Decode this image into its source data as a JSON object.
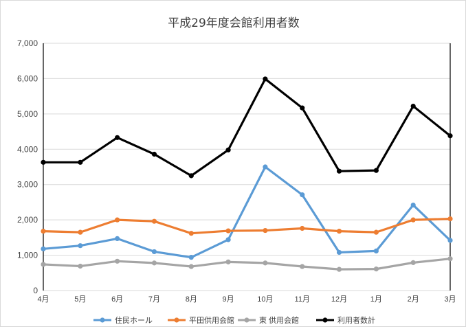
{
  "chart_data": {
    "type": "line",
    "title": "平成29年度会館利用者数",
    "categories": [
      "4月",
      "5月",
      "6月",
      "7月",
      "8月",
      "9月",
      "10月",
      "11月",
      "12月",
      "1月",
      "2月",
      "3月"
    ],
    "ylim": [
      0,
      7000
    ],
    "yticks": [
      0,
      1000,
      2000,
      3000,
      4000,
      5000,
      6000,
      7000
    ],
    "ytick_labels": [
      "0",
      "1,000",
      "2,000",
      "3,000",
      "4,000",
      "5,000",
      "6,000",
      "7,000"
    ],
    "grid": true,
    "legend_position": "bottom",
    "series": [
      {
        "name": "住民ホール",
        "color": "#5b9bd5",
        "values": [
          1180,
          1270,
          1470,
          1100,
          940,
          1440,
          3500,
          2710,
          1080,
          1120,
          2420,
          1420
        ]
      },
      {
        "name": "平田供用会館",
        "color": "#ed7d31",
        "values": [
          1680,
          1650,
          2000,
          1960,
          1620,
          1690,
          1700,
          1760,
          1680,
          1650,
          2000,
          2030
        ]
      },
      {
        "name": "東 供用会館",
        "color": "#a5a5a5",
        "values": [
          740,
          690,
          830,
          780,
          680,
          810,
          780,
          680,
          600,
          610,
          790,
          900
        ]
      },
      {
        "name": "利用者数計",
        "color": "#000000",
        "values": [
          3630,
          3630,
          4330,
          3860,
          3250,
          3980,
          5990,
          5170,
          3380,
          3400,
          5220,
          4380
        ]
      }
    ]
  }
}
